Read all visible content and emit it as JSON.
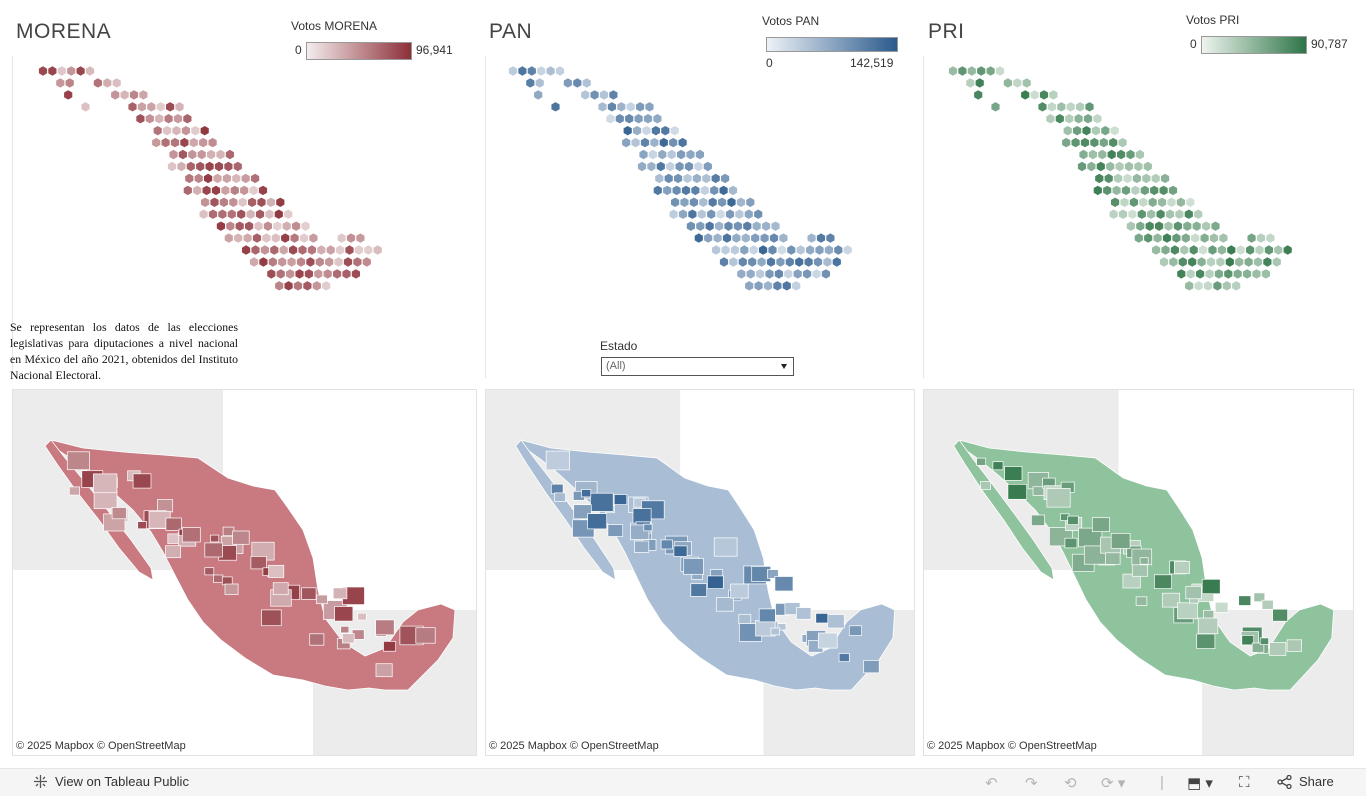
{
  "panels": [
    {
      "id": "morena",
      "title": "MORENA",
      "legend": {
        "title": "Votos MORENA",
        "min": "0",
        "max": "96,941"
      },
      "colors": {
        "low": "#f4eded",
        "high": "#8c2f38",
        "base": "#c87a80"
      }
    },
    {
      "id": "pan",
      "title": "PAN",
      "legend": {
        "title": "Votos PAN",
        "min": "0",
        "max": "142,519"
      },
      "colors": {
        "low": "#eef2f7",
        "high": "#2a5a8c",
        "base": "#a9bed5"
      }
    },
    {
      "id": "pri",
      "title": "PRI",
      "legend": {
        "title": "Votos PRI",
        "min": "0",
        "max": "90,787"
      },
      "colors": {
        "low": "#eef4ee",
        "high": "#2e7547",
        "base": "#8fc39d"
      }
    }
  ],
  "description": "Se representan los datos de las elecciones legislativas para diputaciones a nivel nacional en México del año 2021, obtenidos del Instituto Nacional Electoral.",
  "filter": {
    "label": "Estado",
    "value": "(All)"
  },
  "map_attribution": "© 2025 Mapbox  © OpenStreetMap",
  "footer": {
    "view_label": "View on Tableau Public",
    "share_label": "Share",
    "icons": [
      "tableau-logo-icon",
      "undo-icon",
      "redo-icon",
      "revert-icon",
      "refresh-icon",
      "download-icon",
      "fullscreen-icon",
      "share-icon"
    ]
  }
}
